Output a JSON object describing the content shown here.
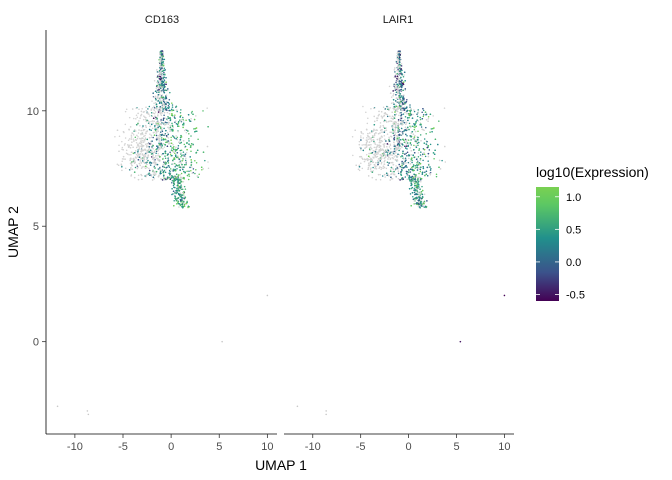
{
  "chart_data": {
    "type": "scatter",
    "xlabel": "UMAP 1",
    "ylabel": "UMAP 2",
    "xlim": [
      -13,
      11
    ],
    "ylim": [
      -4,
      13.5
    ],
    "x_ticks": [
      -10,
      -5,
      0,
      5,
      10
    ],
    "x_tick_labels": [
      "-10",
      "-5",
      "0",
      "5",
      "10"
    ],
    "y_ticks": [
      0,
      5,
      10
    ],
    "y_tick_labels": [
      "0",
      "5",
      "10"
    ],
    "grid": false,
    "legend": {
      "title": "log10(Expression)",
      "placement": "right",
      "range": [
        -0.6,
        1.15
      ],
      "ticks": [
        1.0,
        0.5,
        0.0,
        -0.5
      ],
      "tick_labels": [
        "1.0",
        "0.5",
        "0.0",
        "-0.5"
      ],
      "colors": [
        "#440154",
        "#3b528b",
        "#21908c",
        "#5dc863",
        "#7ad151"
      ],
      "na_color": "#d3d3d3"
    },
    "panels": [
      {
        "name": "CD163",
        "cluster_center": [
          -0.3,
          9.2
        ],
        "expressed_fraction": 0.55,
        "mean_log10_expression": 0.35,
        "outliers": [
          {
            "x": -11.8,
            "y": -2.8,
            "value": null
          },
          {
            "x": -8.7,
            "y": -3.0,
            "value": null
          },
          {
            "x": -8.6,
            "y": -3.15,
            "value": null
          },
          {
            "x": 5.3,
            "y": 0.0,
            "value": null
          },
          {
            "x": 10.0,
            "y": 2.0,
            "value": null
          }
        ]
      },
      {
        "name": "LAIR1",
        "cluster_center": [
          -0.3,
          9.2
        ],
        "expressed_fraction": 0.5,
        "mean_log10_expression": 0.25,
        "outliers": [
          {
            "x": -11.6,
            "y": -2.8,
            "value": null
          },
          {
            "x": -8.6,
            "y": -3.0,
            "value": null
          },
          {
            "x": -8.6,
            "y": -3.15,
            "value": null
          },
          {
            "x": 5.4,
            "y": 0.0,
            "value": -0.5
          },
          {
            "x": 10.0,
            "y": 2.0,
            "value": -0.6
          }
        ]
      }
    ]
  }
}
